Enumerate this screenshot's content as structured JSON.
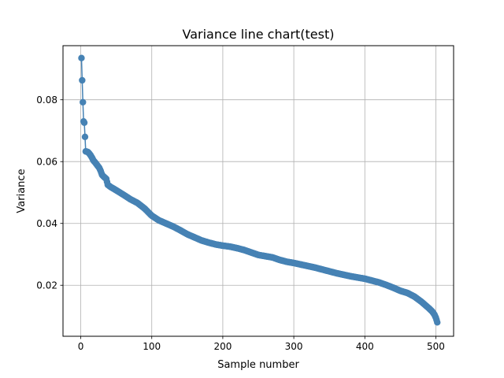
{
  "chart_data": {
    "type": "line",
    "title": "Variance line chart(test)",
    "xlabel": "Sample number",
    "ylabel": "Variance",
    "xlim": [
      -25,
      525
    ],
    "ylim": [
      0.0035,
      0.0975
    ],
    "x_ticks": [
      0,
      100,
      200,
      300,
      400,
      500
    ],
    "x_tick_labels": [
      "0",
      "100",
      "200",
      "300",
      "400",
      "500"
    ],
    "y_ticks": [
      0.02,
      0.04,
      0.06,
      0.08
    ],
    "y_tick_labels": [
      "0.02",
      "0.04",
      "0.06",
      "0.08"
    ],
    "grid": true,
    "legend": "none",
    "series_color": "#4682b4",
    "marker": "circle",
    "series": [
      {
        "curve_points": [
          [
            1,
            0.0935
          ],
          [
            2,
            0.0863
          ],
          [
            3,
            0.0792
          ],
          [
            4,
            0.073
          ],
          [
            5,
            0.0726
          ],
          [
            6,
            0.068
          ],
          [
            7,
            0.0633
          ],
          [
            10,
            0.0631
          ],
          [
            12,
            0.0626
          ],
          [
            14,
            0.062
          ],
          [
            16,
            0.0612
          ],
          [
            18,
            0.0603
          ],
          [
            20,
            0.0598
          ],
          [
            22,
            0.0592
          ],
          [
            24,
            0.0586
          ],
          [
            26,
            0.058
          ],
          [
            28,
            0.057
          ],
          [
            30,
            0.0557
          ],
          [
            32,
            0.0552
          ],
          [
            34,
            0.0548
          ],
          [
            36,
            0.0544
          ],
          [
            38,
            0.0525
          ],
          [
            42,
            0.0518
          ],
          [
            48,
            0.051
          ],
          [
            55,
            0.05
          ],
          [
            62,
            0.049
          ],
          [
            70,
            0.0478
          ],
          [
            80,
            0.0466
          ],
          [
            90,
            0.0448
          ],
          [
            100,
            0.0425
          ],
          [
            110,
            0.041
          ],
          [
            120,
            0.04
          ],
          [
            130,
            0.039
          ],
          [
            140,
            0.0378
          ],
          [
            150,
            0.0365
          ],
          [
            160,
            0.0355
          ],
          [
            170,
            0.0345
          ],
          [
            180,
            0.0338
          ],
          [
            190,
            0.0332
          ],
          [
            200,
            0.0328
          ],
          [
            210,
            0.0325
          ],
          [
            220,
            0.032
          ],
          [
            230,
            0.0314
          ],
          [
            240,
            0.0306
          ],
          [
            250,
            0.0298
          ],
          [
            260,
            0.0294
          ],
          [
            270,
            0.029
          ],
          [
            280,
            0.0282
          ],
          [
            290,
            0.0276
          ],
          [
            300,
            0.0272
          ],
          [
            310,
            0.0267
          ],
          [
            320,
            0.0262
          ],
          [
            330,
            0.0257
          ],
          [
            340,
            0.0251
          ],
          [
            350,
            0.0245
          ],
          [
            360,
            0.0239
          ],
          [
            370,
            0.0234
          ],
          [
            380,
            0.0229
          ],
          [
            390,
            0.0225
          ],
          [
            400,
            0.0221
          ],
          [
            410,
            0.0215
          ],
          [
            420,
            0.0209
          ],
          [
            430,
            0.0201
          ],
          [
            440,
            0.0192
          ],
          [
            450,
            0.0182
          ],
          [
            460,
            0.0175
          ],
          [
            470,
            0.0163
          ],
          [
            480,
            0.0146
          ],
          [
            490,
            0.0126
          ],
          [
            495,
            0.0115
          ],
          [
            498,
            0.0105
          ],
          [
            500,
            0.0095
          ],
          [
            501,
            0.0088
          ],
          [
            502,
            0.008
          ]
        ]
      }
    ]
  }
}
